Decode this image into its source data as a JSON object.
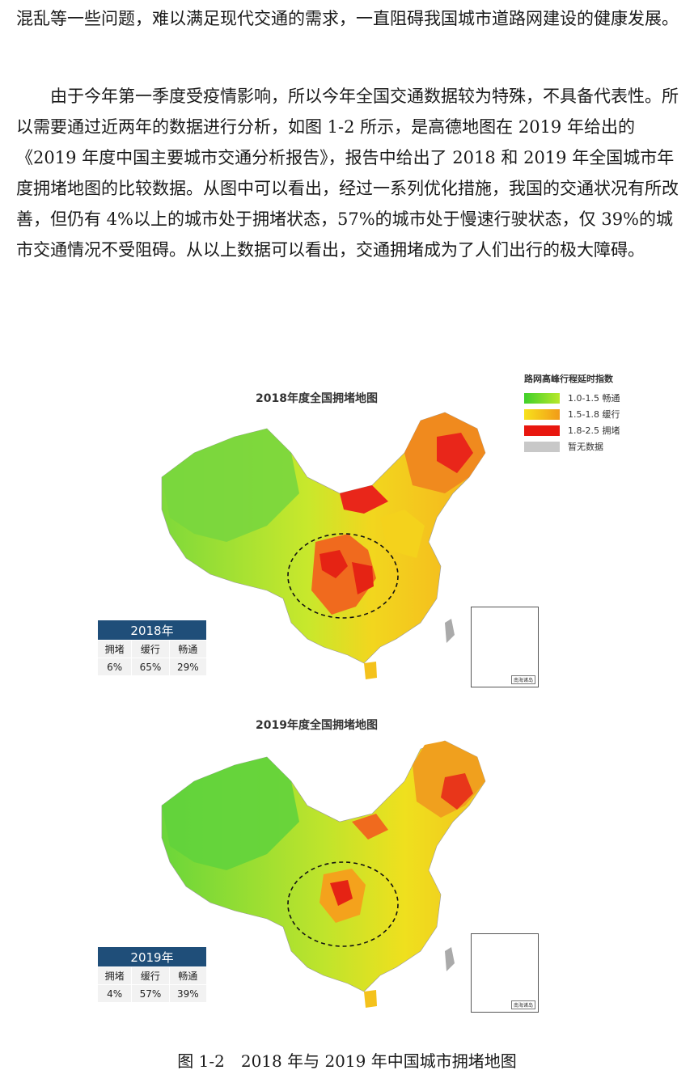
{
  "paragraphs": {
    "p1": "混乱等一些问题，难以满足现代交通的需求，一直阻碍我国城市道路网建设的健康发展。",
    "p2": "由于今年第一季度受疫情影响，所以今年全国交通数据较为特殊，不具备代表性。所以需要通过近两年的数据进行分析，如图 1-2 所示，是高德地图在 2019 年给出的《2019 年度中国主要城市交通分析报告》，报告中给出了 2018 和 2019 年全国城市年度拥堵地图的比较数据。从图中可以看出，经过一系列优化措施，我国的交通状况有所改善，但仍有 4%以上的城市处于拥堵状态，57%的城市处于慢速行驶状态，仅 39%的城市交通情况不受阻碍。从以上数据可以看出，交通拥堵成为了人们出行的极大障碍。"
  },
  "legend": {
    "title": "路网高峰行程延时指数",
    "items": [
      {
        "label": "1.0-1.5 畅通",
        "color": "#5fd93a"
      },
      {
        "label": "1.5-1.8 缓行",
        "color": "#f4a21c"
      },
      {
        "label": "1.8-2.5 拥堵",
        "color": "#e8170f"
      },
      {
        "label": "暂无数据",
        "color": "#c8c8c8"
      }
    ]
  },
  "map2018": {
    "title": "2018年度全国拥堵地图",
    "table": {
      "year": "2018年",
      "headers": [
        "拥堵",
        "缓行",
        "畅通"
      ],
      "values": [
        "6%",
        "65%",
        "29%"
      ]
    }
  },
  "map2019": {
    "title": "2019年度全国拥堵地图",
    "table": {
      "year": "2019年",
      "headers": [
        "拥堵",
        "缓行",
        "畅通"
      ],
      "values": [
        "4%",
        "57%",
        "39%"
      ]
    }
  },
  "inset_label": "南海诸岛",
  "caption": "图 1-2　2018 年与 2019 年中国城市拥堵地图"
}
